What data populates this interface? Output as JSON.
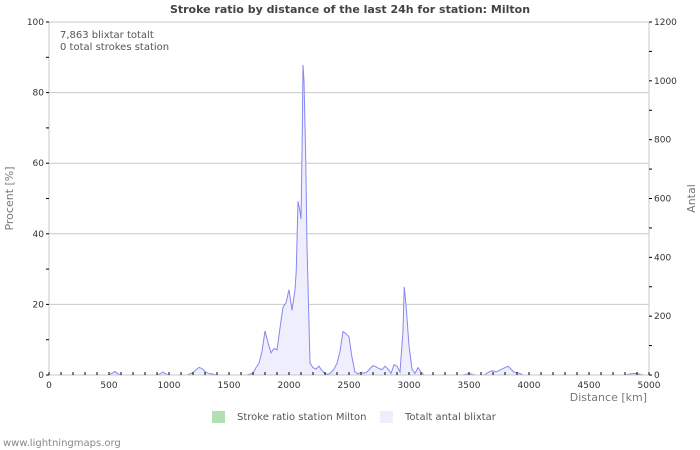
{
  "title": "Stroke ratio by distance of the last 24h for station: Milton",
  "info": {
    "line1": "7,863 blixtar totalt",
    "line2": "0 total strokes station"
  },
  "legend": [
    {
      "label": "Stroke ratio station Milton",
      "color": "#b3dfb3"
    },
    {
      "label": "Totalt antal blixtar",
      "color": "#eeeefc"
    }
  ],
  "footer": "www.lightningmaps.org",
  "chart_data": {
    "type": "area",
    "title": "Stroke ratio by distance of the last 24h for station: Milton",
    "xlabel": "Distance   [km]",
    "ylabel_left": "Procent   [%]",
    "ylabel_right": "Antal",
    "xlim": [
      0,
      5000
    ],
    "ylim_left": [
      0,
      100
    ],
    "ylim_right": [
      0,
      1200
    ],
    "x_ticks": [
      0,
      500,
      1000,
      1500,
      2000,
      2500,
      3000,
      3500,
      4000,
      4500,
      5000
    ],
    "y_ticks_left": [
      0,
      20,
      40,
      60,
      80,
      100
    ],
    "y_ticks_right": [
      0,
      200,
      400,
      600,
      800,
      1000,
      1200
    ],
    "grid": true,
    "legend_position": "bottom",
    "series": [
      {
        "name": "Stroke ratio station Milton",
        "axis": "left",
        "color": "#b3dfb3",
        "x": [],
        "values": []
      },
      {
        "name": "Totalt antal blixtar",
        "axis": "right",
        "color": "#eeeefc",
        "stroke": "#8888ee",
        "x": [
          0,
          100,
          200,
          300,
          350,
          400,
          450,
          500,
          525,
          550,
          575,
          600,
          650,
          700,
          750,
          800,
          850,
          900,
          925,
          950,
          975,
          1000,
          1050,
          1100,
          1150,
          1175,
          1200,
          1225,
          1250,
          1275,
          1300,
          1325,
          1350,
          1375,
          1400,
          1450,
          1500,
          1550,
          1600,
          1650,
          1700,
          1725,
          1750,
          1775,
          1800,
          1825,
          1850,
          1875,
          1900,
          1925,
          1950,
          1975,
          2000,
          2025,
          2050,
          2060,
          2075,
          2090,
          2100,
          2110,
          2117,
          2125,
          2140,
          2150,
          2175,
          2200,
          2225,
          2250,
          2275,
          2300,
          2325,
          2350,
          2375,
          2400,
          2425,
          2450,
          2475,
          2500,
          2525,
          2550,
          2575,
          2600,
          2625,
          2650,
          2675,
          2700,
          2725,
          2750,
          2775,
          2800,
          2825,
          2850,
          2875,
          2900,
          2925,
          2950,
          2960,
          2975,
          3000,
          3025,
          3050,
          3075,
          3100,
          3125,
          3150,
          3200,
          3250,
          3300,
          3350,
          3400,
          3450,
          3500,
          3550,
          3600,
          3625,
          3650,
          3675,
          3700,
          3725,
          3750,
          3775,
          3800,
          3825,
          3850,
          3875,
          3900,
          3925,
          3950,
          4000,
          4050,
          4100,
          4150,
          4200,
          4250,
          4300,
          4350,
          4400,
          4450,
          4500,
          4550,
          4600,
          4650,
          4700,
          4750,
          4800,
          4850,
          4900,
          4950,
          5000
        ],
        "values": [
          0,
          0,
          0,
          0,
          0,
          0,
          0,
          0,
          6,
          12,
          4,
          0,
          0,
          0,
          0,
          0,
          0,
          0,
          4,
          10,
          3,
          0,
          0,
          0,
          0,
          4,
          8,
          18,
          26,
          22,
          12,
          6,
          4,
          2,
          0,
          0,
          0,
          0,
          0,
          0,
          6,
          25,
          40,
          80,
          150,
          110,
          75,
          90,
          85,
          160,
          230,
          245,
          290,
          220,
          290,
          350,
          590,
          560,
          530,
          800,
          1054,
          1000,
          720,
          440,
          40,
          25,
          20,
          30,
          15,
          5,
          2,
          8,
          20,
          40,
          80,
          148,
          140,
          130,
          60,
          10,
          4,
          8,
          6,
          10,
          22,
          32,
          28,
          22,
          18,
          30,
          20,
          5,
          35,
          30,
          10,
          150,
          300,
          240,
          100,
          20,
          5,
          25,
          10,
          0,
          0,
          0,
          0,
          0,
          0,
          0,
          0,
          5,
          0,
          0,
          0,
          6,
          12,
          15,
          10,
          15,
          20,
          25,
          30,
          20,
          10,
          8,
          5,
          0,
          0,
          0,
          0,
          0,
          0,
          0,
          0,
          0,
          0,
          0,
          0,
          0,
          0,
          0,
          0,
          0,
          0,
          4,
          5,
          0,
          0
        ]
      }
    ]
  }
}
